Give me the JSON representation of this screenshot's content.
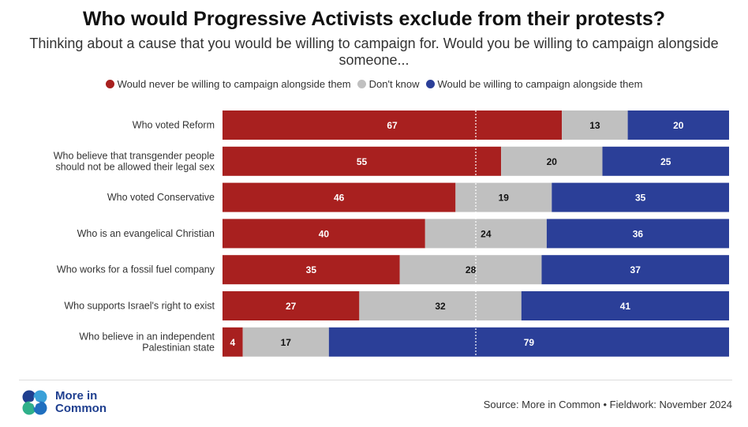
{
  "title": "Who would Progressive Activists exclude from their protests?",
  "subtitle": "Thinking about a cause that you would be willing to campaign for. Would you be willing to campaign alongside someone...",
  "legend": [
    {
      "label": "Would never be willing to campaign alongside them",
      "color": "#a8201f"
    },
    {
      "label": "Don't know",
      "color": "#c0c0c0"
    },
    {
      "label": "Would be willing to campaign alongside them",
      "color": "#2b3f98"
    }
  ],
  "logo": {
    "line1": "More in",
    "line2": "Common"
  },
  "source": "Source: More in Common • Fieldwork: November 2024",
  "chart_data": {
    "type": "bar",
    "stacked": true,
    "orientation": "horizontal",
    "xlim": [
      0,
      100
    ],
    "categories": [
      [
        "Who voted Reform"
      ],
      [
        "Who believe that transgender people",
        "should not be allowed their legal sex"
      ],
      [
        "Who voted Conservative"
      ],
      [
        "Who is an evangelical Christian"
      ],
      [
        "Who works for a fossil fuel company"
      ],
      [
        "Who supports Israel's right to exist"
      ],
      [
        "Who believe in an independent",
        "Palestinian state"
      ]
    ],
    "series": [
      {
        "name": "Would never be willing to campaign alongside them",
        "color": "#a8201f",
        "label_color": "#ffffff",
        "values": [
          67,
          55,
          46,
          40,
          35,
          27,
          4
        ]
      },
      {
        "name": "Don't know",
        "color": "#c0c0c0",
        "label_color": "#111111",
        "values": [
          13,
          20,
          19,
          24,
          28,
          32,
          17
        ]
      },
      {
        "name": "Would be willing to campaign alongside them",
        "color": "#2b3f98",
        "label_color": "#ffffff",
        "values": [
          20,
          25,
          35,
          36,
          37,
          41,
          79
        ]
      }
    ],
    "reference_line": 50
  }
}
